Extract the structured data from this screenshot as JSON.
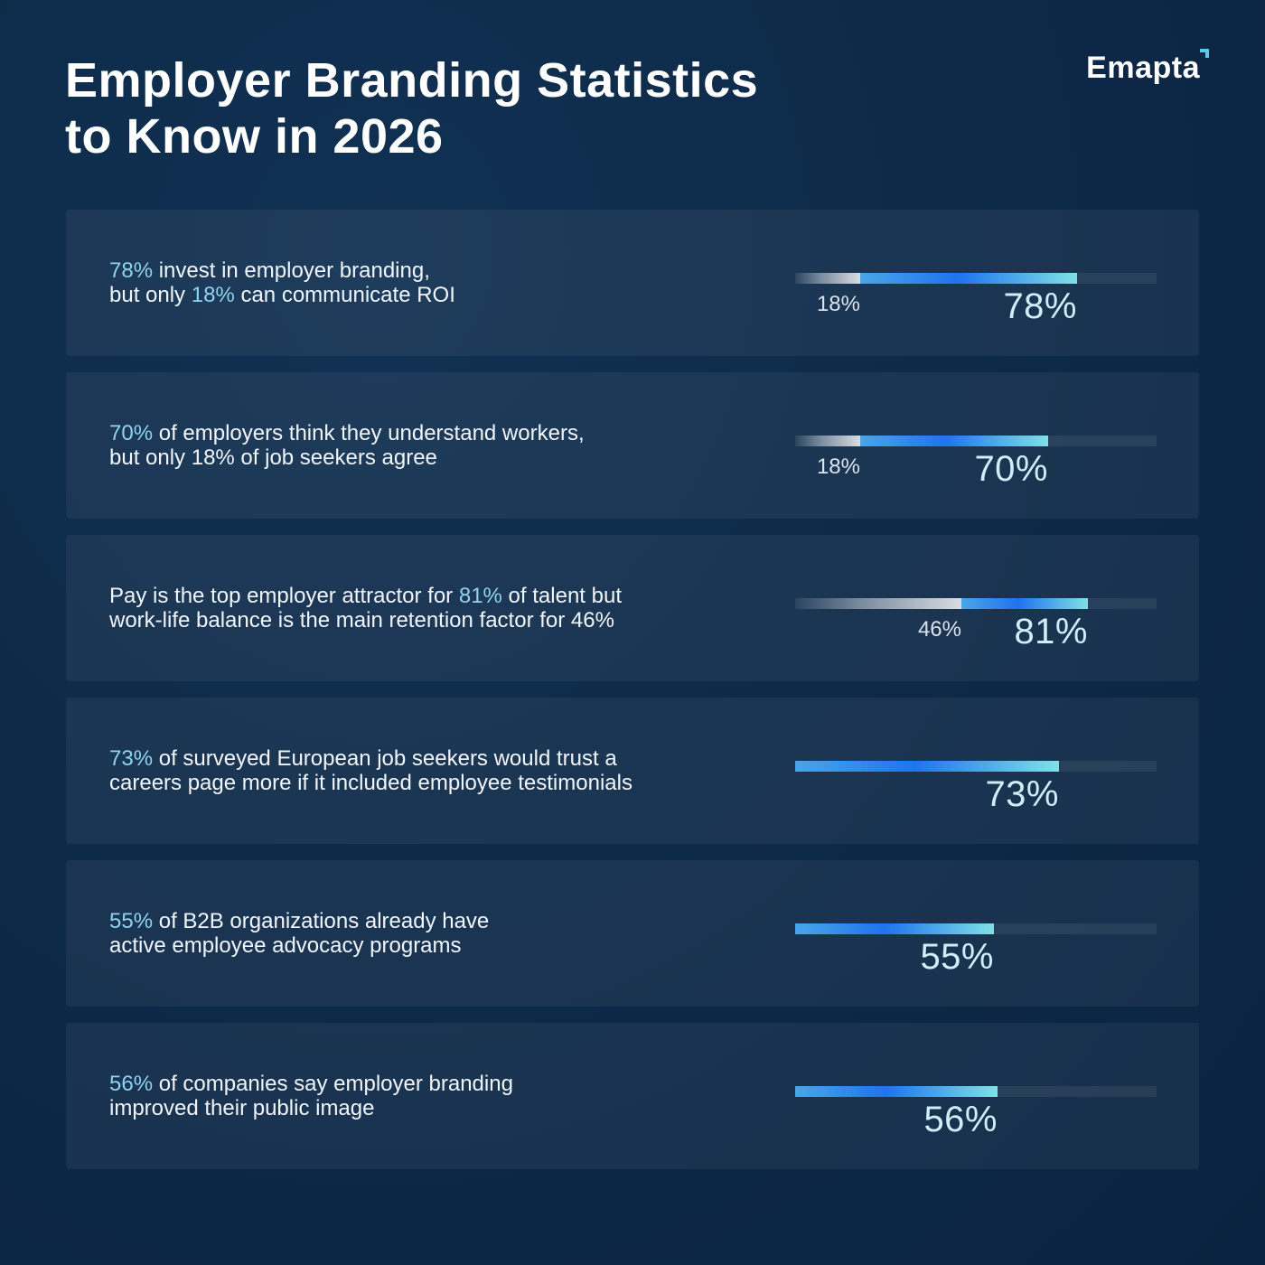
{
  "title_line1": "Employer Branding Statistics",
  "title_line2": "to Know in 2026",
  "logo": "Emapta",
  "colors": {
    "background": "#0d2a48",
    "highlight": "#8fd3f0",
    "bar_blue_start": "#49a6e8",
    "bar_blue_mid": "#1f73ee",
    "bar_blue_end": "#7fe1e6",
    "bar_grey": "#d9dde3"
  },
  "chart_data": {
    "type": "bar",
    "orientation": "horizontal",
    "xlim": [
      0,
      100
    ],
    "rows": [
      {
        "line1": [
          {
            "t": "78%",
            "h": true
          },
          {
            "t": " invest in employer branding,",
            "h": false
          }
        ],
        "line2": [
          {
            "t": "but only ",
            "h": false
          },
          {
            "t": "18%",
            "h": true
          },
          {
            "t": " can communicate ROI",
            "h": false
          }
        ],
        "values": [
          18,
          78
        ],
        "labels": [
          "18%",
          "78%"
        ]
      },
      {
        "line1": [
          {
            "t": "70%",
            "h": true
          },
          {
            "t": " of employers think they understand workers,",
            "h": false
          }
        ],
        "line2": [
          {
            "t": "but only 18% of job seekers agree",
            "h": false
          }
        ],
        "values": [
          18,
          70
        ],
        "labels": [
          "18%",
          "70%"
        ]
      },
      {
        "line1": [
          {
            "t": "Pay is the top employer attractor for ",
            "h": false
          },
          {
            "t": "81%",
            "h": true
          },
          {
            "t": " of talent but",
            "h": false
          }
        ],
        "line2": [
          {
            "t": "work-life balance is the main retention factor for 46%",
            "h": false
          }
        ],
        "values": [
          46,
          81
        ],
        "labels": [
          "46%",
          "81%"
        ]
      },
      {
        "line1": [
          {
            "t": "73%",
            "h": true
          },
          {
            "t": " of surveyed European job seekers would trust a",
            "h": false
          }
        ],
        "line2": [
          {
            "t": "careers page more if it included employee testimonials",
            "h": false
          }
        ],
        "values": [
          73
        ],
        "labels": [
          "73%"
        ]
      },
      {
        "line1": [
          {
            "t": "55%",
            "h": true
          },
          {
            "t": " of B2B organizations already have",
            "h": false
          }
        ],
        "line2": [
          {
            "t": "active employee advocacy programs",
            "h": false
          }
        ],
        "values": [
          55
        ],
        "labels": [
          "55%"
        ]
      },
      {
        "line1": [
          {
            "t": "56%",
            "h": true
          },
          {
            "t": " of companies say employer branding",
            "h": false
          }
        ],
        "line2": [
          {
            "t": "improved their public image",
            "h": false
          }
        ],
        "values": [
          56
        ],
        "labels": [
          "56%"
        ]
      }
    ]
  }
}
